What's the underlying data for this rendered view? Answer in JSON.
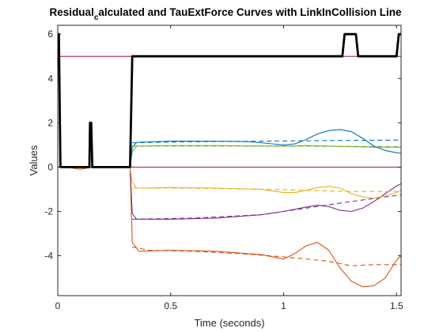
{
  "chart_data": {
    "type": "line",
    "title": {
      "prefix": "Residual",
      "subscript": "c",
      "suffix": "alculated and TauExtForce Curves with LinkInCollision Line"
    },
    "xlabel": "Time (seconds)",
    "ylabel": "Values",
    "xlim": [
      0,
      1.52
    ],
    "ylim": [
      -5.8,
      6.4
    ],
    "xticks": [
      0,
      0.5,
      1,
      1.5
    ],
    "xtick_labels": [
      "0",
      "0.5",
      "1",
      "1.5"
    ],
    "yticks": [
      -4,
      -2,
      0,
      2,
      4,
      6
    ],
    "ytick_labels": [
      "-4",
      "-2",
      "0",
      "2",
      "4",
      "6"
    ],
    "grid": false,
    "legend": "none",
    "series": [
      {
        "color": "#D95319",
        "style": "solid",
        "width": 1.1,
        "points": [
          [
            0,
            0
          ],
          [
            0.05,
            -0.02
          ],
          [
            0.1,
            -0.1
          ],
          [
            0.15,
            0
          ],
          [
            0.2,
            0
          ],
          [
            0.32,
            0
          ],
          [
            0.33,
            -3.4
          ],
          [
            0.36,
            -3.8
          ],
          [
            0.5,
            -3.75
          ],
          [
            0.7,
            -3.8
          ],
          [
            0.9,
            -3.95
          ],
          [
            1.0,
            -4.15
          ],
          [
            1.05,
            -3.9
          ],
          [
            1.1,
            -3.55
          ],
          [
            1.15,
            -3.4
          ],
          [
            1.2,
            -3.75
          ],
          [
            1.25,
            -4.55
          ],
          [
            1.3,
            -5.15
          ],
          [
            1.35,
            -5.4
          ],
          [
            1.4,
            -5.35
          ],
          [
            1.45,
            -5.0
          ],
          [
            1.5,
            -4.2
          ],
          [
            1.52,
            -4.0
          ]
        ]
      },
      {
        "color": "#D95319",
        "style": "dashed",
        "width": 1.1,
        "points": [
          [
            0.33,
            -3.6
          ],
          [
            0.4,
            -3.75
          ],
          [
            0.6,
            -3.8
          ],
          [
            0.8,
            -3.9
          ],
          [
            1.0,
            -4.05
          ],
          [
            1.2,
            -4.25
          ],
          [
            1.3,
            -4.45
          ],
          [
            1.4,
            -4.4
          ],
          [
            1.52,
            -4.4
          ]
        ]
      },
      {
        "color": "#7E2F8E",
        "style": "solid",
        "width": 1.1,
        "points": [
          [
            0,
            0
          ],
          [
            0.2,
            0
          ],
          [
            0.32,
            0
          ],
          [
            0.33,
            -2.1
          ],
          [
            0.35,
            -2.35
          ],
          [
            0.5,
            -2.35
          ],
          [
            0.7,
            -2.3
          ],
          [
            0.9,
            -2.15
          ],
          [
            1.0,
            -2.0
          ],
          [
            1.1,
            -1.8
          ],
          [
            1.15,
            -1.72
          ],
          [
            1.2,
            -1.78
          ],
          [
            1.25,
            -1.95
          ],
          [
            1.3,
            -2.0
          ],
          [
            1.35,
            -1.85
          ],
          [
            1.4,
            -1.55
          ],
          [
            1.45,
            -1.2
          ],
          [
            1.5,
            -0.85
          ],
          [
            1.52,
            -0.75
          ]
        ]
      },
      {
        "color": "#7E2F8E",
        "style": "dashed",
        "width": 1.1,
        "points": [
          [
            0.33,
            -2.35
          ],
          [
            0.6,
            -2.3
          ],
          [
            0.9,
            -2.15
          ],
          [
            1.1,
            -1.85
          ],
          [
            1.3,
            -1.55
          ],
          [
            1.52,
            -1.25
          ]
        ]
      },
      {
        "color": "#EDB120",
        "style": "solid",
        "width": 1.1,
        "points": [
          [
            0,
            0
          ],
          [
            0.2,
            0
          ],
          [
            0.32,
            0
          ],
          [
            0.33,
            -0.7
          ],
          [
            0.35,
            -0.95
          ],
          [
            0.5,
            -0.92
          ],
          [
            0.7,
            -0.95
          ],
          [
            0.9,
            -1.0
          ],
          [
            1.0,
            -1.15
          ],
          [
            1.05,
            -1.15
          ],
          [
            1.1,
            -1.05
          ],
          [
            1.15,
            -0.92
          ],
          [
            1.2,
            -0.87
          ],
          [
            1.25,
            -0.95
          ],
          [
            1.3,
            -1.2
          ],
          [
            1.35,
            -1.35
          ],
          [
            1.4,
            -1.4
          ],
          [
            1.45,
            -1.3
          ],
          [
            1.5,
            -1.15
          ],
          [
            1.52,
            -1.05
          ]
        ]
      },
      {
        "color": "#EDB120",
        "style": "dashed",
        "width": 1.1,
        "points": [
          [
            0.33,
            -0.95
          ],
          [
            0.6,
            -0.95
          ],
          [
            0.9,
            -1.0
          ],
          [
            1.1,
            -1.05
          ],
          [
            1.3,
            -1.1
          ],
          [
            1.52,
            -1.1
          ]
        ]
      },
      {
        "color": "#77AC30",
        "style": "solid",
        "width": 1.1,
        "points": [
          [
            0,
            0
          ],
          [
            0.2,
            0
          ],
          [
            0.32,
            0
          ],
          [
            0.33,
            0.7
          ],
          [
            0.35,
            0.95
          ],
          [
            0.5,
            0.97
          ],
          [
            0.7,
            0.97
          ],
          [
            0.9,
            0.95
          ],
          [
            1.0,
            0.95
          ],
          [
            1.1,
            0.97
          ],
          [
            1.2,
            0.95
          ],
          [
            1.3,
            0.92
          ],
          [
            1.4,
            0.9
          ],
          [
            1.52,
            0.9
          ]
        ]
      },
      {
        "color": "#77AC30",
        "style": "dashed",
        "width": 1.1,
        "points": [
          [
            0.33,
            0.95
          ],
          [
            0.6,
            0.95
          ],
          [
            1.0,
            0.95
          ],
          [
            1.52,
            0.92
          ]
        ]
      },
      {
        "color": "#0072BD",
        "style": "solid",
        "width": 1.1,
        "points": [
          [
            0,
            0
          ],
          [
            0.2,
            0
          ],
          [
            0.32,
            0
          ],
          [
            0.33,
            0.9
          ],
          [
            0.35,
            1.12
          ],
          [
            0.5,
            1.17
          ],
          [
            0.7,
            1.17
          ],
          [
            0.85,
            1.15
          ],
          [
            0.95,
            1.05
          ],
          [
            1.0,
            1.0
          ],
          [
            1.05,
            1.05
          ],
          [
            1.1,
            1.25
          ],
          [
            1.15,
            1.5
          ],
          [
            1.2,
            1.65
          ],
          [
            1.25,
            1.7
          ],
          [
            1.3,
            1.6
          ],
          [
            1.35,
            1.3
          ],
          [
            1.4,
            0.95
          ],
          [
            1.45,
            0.75
          ],
          [
            1.5,
            0.65
          ],
          [
            1.52,
            0.62
          ]
        ]
      },
      {
        "color": "#0072BD",
        "style": "dashed",
        "width": 1.1,
        "points": [
          [
            0.33,
            1.1
          ],
          [
            0.6,
            1.15
          ],
          [
            0.9,
            1.17
          ],
          [
            1.2,
            1.2
          ],
          [
            1.52,
            1.22
          ]
        ]
      },
      {
        "color": "#000000",
        "style": "solid",
        "width": 2.8,
        "points": [
          [
            0,
            6
          ],
          [
            0.005,
            6
          ],
          [
            0.012,
            0
          ],
          [
            0.14,
            0
          ],
          [
            0.143,
            2
          ],
          [
            0.148,
            2
          ],
          [
            0.153,
            0
          ],
          [
            0.32,
            0
          ],
          [
            0.33,
            5
          ],
          [
            1.26,
            5
          ],
          [
            1.27,
            6
          ],
          [
            1.32,
            6
          ],
          [
            1.33,
            5
          ],
          [
            1.5,
            5
          ],
          [
            1.51,
            6
          ],
          [
            1.52,
            6
          ]
        ]
      }
    ],
    "reference_lines": [
      {
        "orientation": "horizontal",
        "y": 5,
        "color": "#A2142F"
      },
      {
        "orientation": "horizontal",
        "y": 0,
        "color": "#A2142F"
      }
    ]
  }
}
